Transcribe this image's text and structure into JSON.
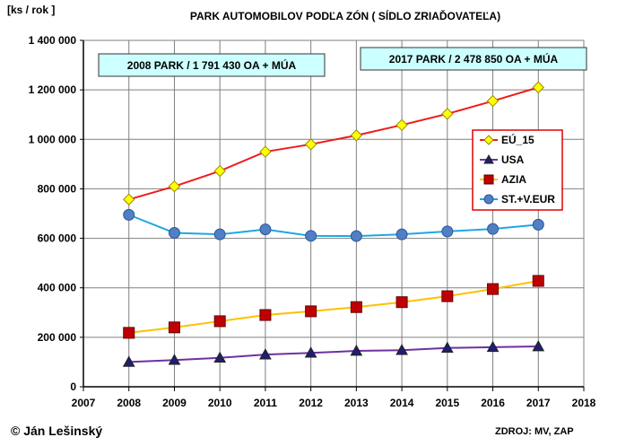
{
  "chart_data": {
    "type": "line",
    "title": "PARK  AUTOMOBILOV  PODĽA  ZÓN  ( SÍDLO  ZRIAĎOVATEĽA)",
    "ylabel": "[ks / rok ]",
    "xlabel": "",
    "xlim": [
      2007,
      2018
    ],
    "ylim": [
      0,
      1400000
    ],
    "x_ticks": [
      "2007",
      "2008",
      "2009",
      "2010",
      "2011",
      "2012",
      "2013",
      "2014",
      "2015",
      "2016",
      "2017",
      "2018"
    ],
    "y_ticks": [
      "0",
      "200 000",
      "400 000",
      "600 000",
      "800 000",
      "1 000 000",
      "1 200 000",
      "1 400 000"
    ],
    "grid": true,
    "legend_position": "right",
    "x": [
      2008,
      2009,
      2010,
      2011,
      2012,
      2013,
      2014,
      2015,
      2016,
      2017
    ],
    "series": [
      {
        "name": "EÚ_15",
        "color": "#ee1c1c",
        "marker": "diamond",
        "marker_fill": "#ffff00",
        "values": [
          757000,
          810000,
          872000,
          950000,
          980000,
          1016000,
          1058000,
          1103000,
          1155000,
          1210000
        ]
      },
      {
        "name": "USA",
        "color": "#7030a0",
        "marker": "triangle",
        "marker_fill": "#1f1f6e",
        "values": [
          100000,
          108000,
          117000,
          130000,
          137000,
          145000,
          148000,
          157000,
          160000,
          163000
        ]
      },
      {
        "name": "AZIA",
        "color": "#ffc000",
        "marker": "square",
        "marker_fill": "#c00000",
        "values": [
          218000,
          240000,
          265000,
          290000,
          305000,
          322000,
          342000,
          366000,
          395000,
          428000
        ]
      },
      {
        "name": "ST.+V.EUR",
        "color": "#1ea7e1",
        "marker": "circle",
        "marker_fill": "#4f7fc4",
        "values": [
          695000,
          622000,
          616000,
          636000,
          610000,
          609000,
          616000,
          628000,
          638000,
          655000
        ]
      }
    ],
    "annotations": [
      {
        "text": "2008 PARK  / 1 791 430 OA + MÚA"
      },
      {
        "text": "2017 PARK  / 2 478 850 OA + MÚA"
      }
    ]
  },
  "footer": {
    "copyright": "© Ján Lešinský",
    "source": "ZDROJ:  MV, ZAP"
  }
}
